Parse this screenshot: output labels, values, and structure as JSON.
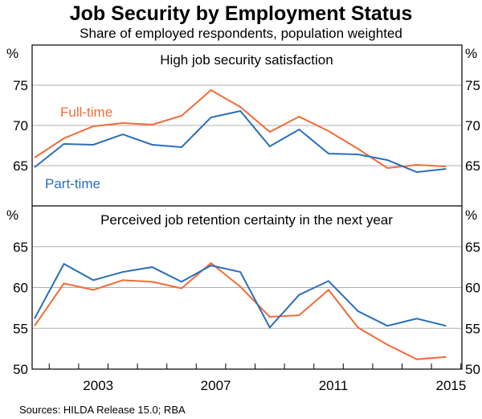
{
  "colors": {
    "full_time": "#f26b38",
    "part_time": "#2a6ebb",
    "grid": "#b0b0b0"
  },
  "chart_data": [
    {
      "type": "line",
      "title": "Job Security by Employment Status",
      "subtitle": "Share of employed respondents, population weighted",
      "panel_title": "High job security satisfaction",
      "unit": "%",
      "ylim": [
        60,
        80
      ],
      "yticks": [
        65,
        70,
        75
      ],
      "x": [
        2001,
        2002,
        2003,
        2004,
        2005,
        2006,
        2007,
        2008,
        2009,
        2010,
        2011,
        2012,
        2013,
        2014,
        2015
      ],
      "series": [
        {
          "name": "Full-time",
          "values": [
            66.0,
            68.4,
            69.9,
            70.3,
            70.1,
            71.2,
            74.4,
            72.3,
            69.2,
            71.1,
            69.3,
            67.1,
            64.7,
            65.1,
            64.9
          ]
        },
        {
          "name": "Part-time",
          "values": [
            64.8,
            67.7,
            67.6,
            68.9,
            67.6,
            67.3,
            71.0,
            71.8,
            67.4,
            69.5,
            66.5,
            66.4,
            65.7,
            64.2,
            64.6
          ]
        }
      ]
    },
    {
      "type": "line",
      "panel_title": "Perceived job retention certainty in the next year",
      "unit": "%",
      "ylim": [
        50,
        70
      ],
      "yticks": [
        50,
        55,
        60,
        65
      ],
      "x": [
        2001,
        2002,
        2003,
        2004,
        2005,
        2006,
        2007,
        2008,
        2009,
        2010,
        2011,
        2012,
        2013,
        2014,
        2015
      ],
      "xtick_labels": [
        "2003",
        "2007",
        "2011",
        "2015"
      ],
      "series": [
        {
          "name": "Full-time",
          "values": [
            55.3,
            60.5,
            59.7,
            60.9,
            60.7,
            59.9,
            63.0,
            60.1,
            56.4,
            56.6,
            59.7,
            55.1,
            53.0,
            51.2,
            51.5
          ]
        },
        {
          "name": "Part-time",
          "values": [
            56.2,
            62.9,
            60.9,
            61.9,
            62.5,
            60.7,
            62.7,
            61.9,
            55.1,
            59.1,
            60.8,
            57.1,
            55.3,
            56.2,
            55.3
          ]
        }
      ]
    }
  ],
  "labels": {
    "full_time": "Full-time",
    "part_time": "Part-time"
  },
  "source": "Sources: HILDA Release 15.0; RBA"
}
